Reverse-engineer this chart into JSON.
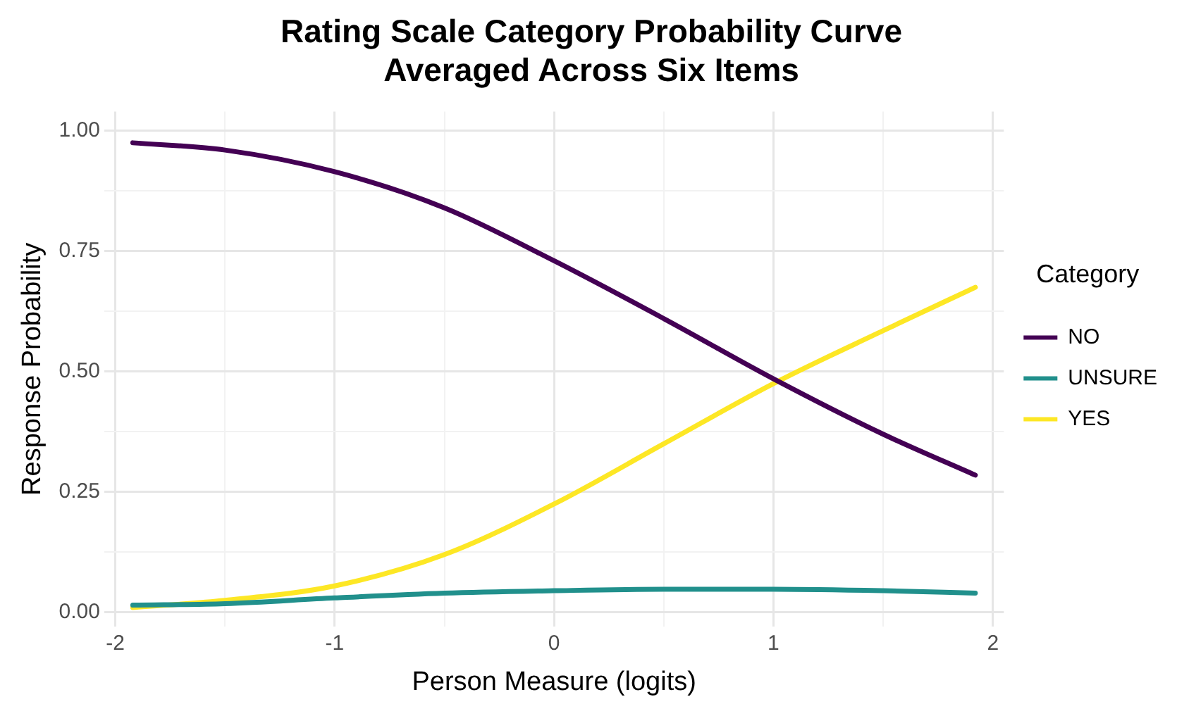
{
  "chart_data": {
    "type": "line",
    "title": "Rating Scale Category Probability Curve\nAveraged Across Six Items",
    "xlabel": "Person Measure (logits)",
    "ylabel": "Response Probability",
    "legend_title": "Category",
    "x": [
      -1.92,
      -1.5,
      -1,
      -0.5,
      0,
      0.5,
      1,
      1.5,
      1.92
    ],
    "series": [
      {
        "name": "NO",
        "color": "#440154",
        "values": [
          0.975,
          0.96,
          0.915,
          0.84,
          0.73,
          0.61,
          0.485,
          0.37,
          0.285
        ]
      },
      {
        "name": "UNSURE",
        "color": "#21908c",
        "values": [
          0.015,
          0.018,
          0.03,
          0.04,
          0.045,
          0.048,
          0.048,
          0.045,
          0.04
        ]
      },
      {
        "name": "YES",
        "color": "#fde725",
        "values": [
          0.01,
          0.025,
          0.055,
          0.12,
          0.225,
          0.35,
          0.475,
          0.585,
          0.675
        ]
      }
    ],
    "xlim": [
      -2.05,
      2.05
    ],
    "ylim": [
      -0.03,
      1.04
    ],
    "xticks": [
      -2,
      {
        "value": -1.5,
        "label": null
      },
      -1,
      {
        "value": -0.5,
        "label": null
      },
      0,
      {
        "value": 0.5,
        "label": null
      },
      1,
      {
        "value": 1.5,
        "label": null
      },
      2
    ],
    "yticks": [
      {
        "value": 0,
        "label": "0.00"
      },
      {
        "value": 0.125,
        "label": null
      },
      {
        "value": 0.25,
        "label": "0.25"
      },
      {
        "value": 0.375,
        "label": null
      },
      {
        "value": 0.5,
        "label": "0.50"
      },
      {
        "value": 0.625,
        "label": null
      },
      {
        "value": 0.75,
        "label": "0.75"
      },
      {
        "value": 0.875,
        "label": null
      },
      {
        "value": 1,
        "label": "1.00"
      }
    ],
    "grid": true,
    "legend": "right",
    "marker": "none",
    "line_style": "solid"
  }
}
